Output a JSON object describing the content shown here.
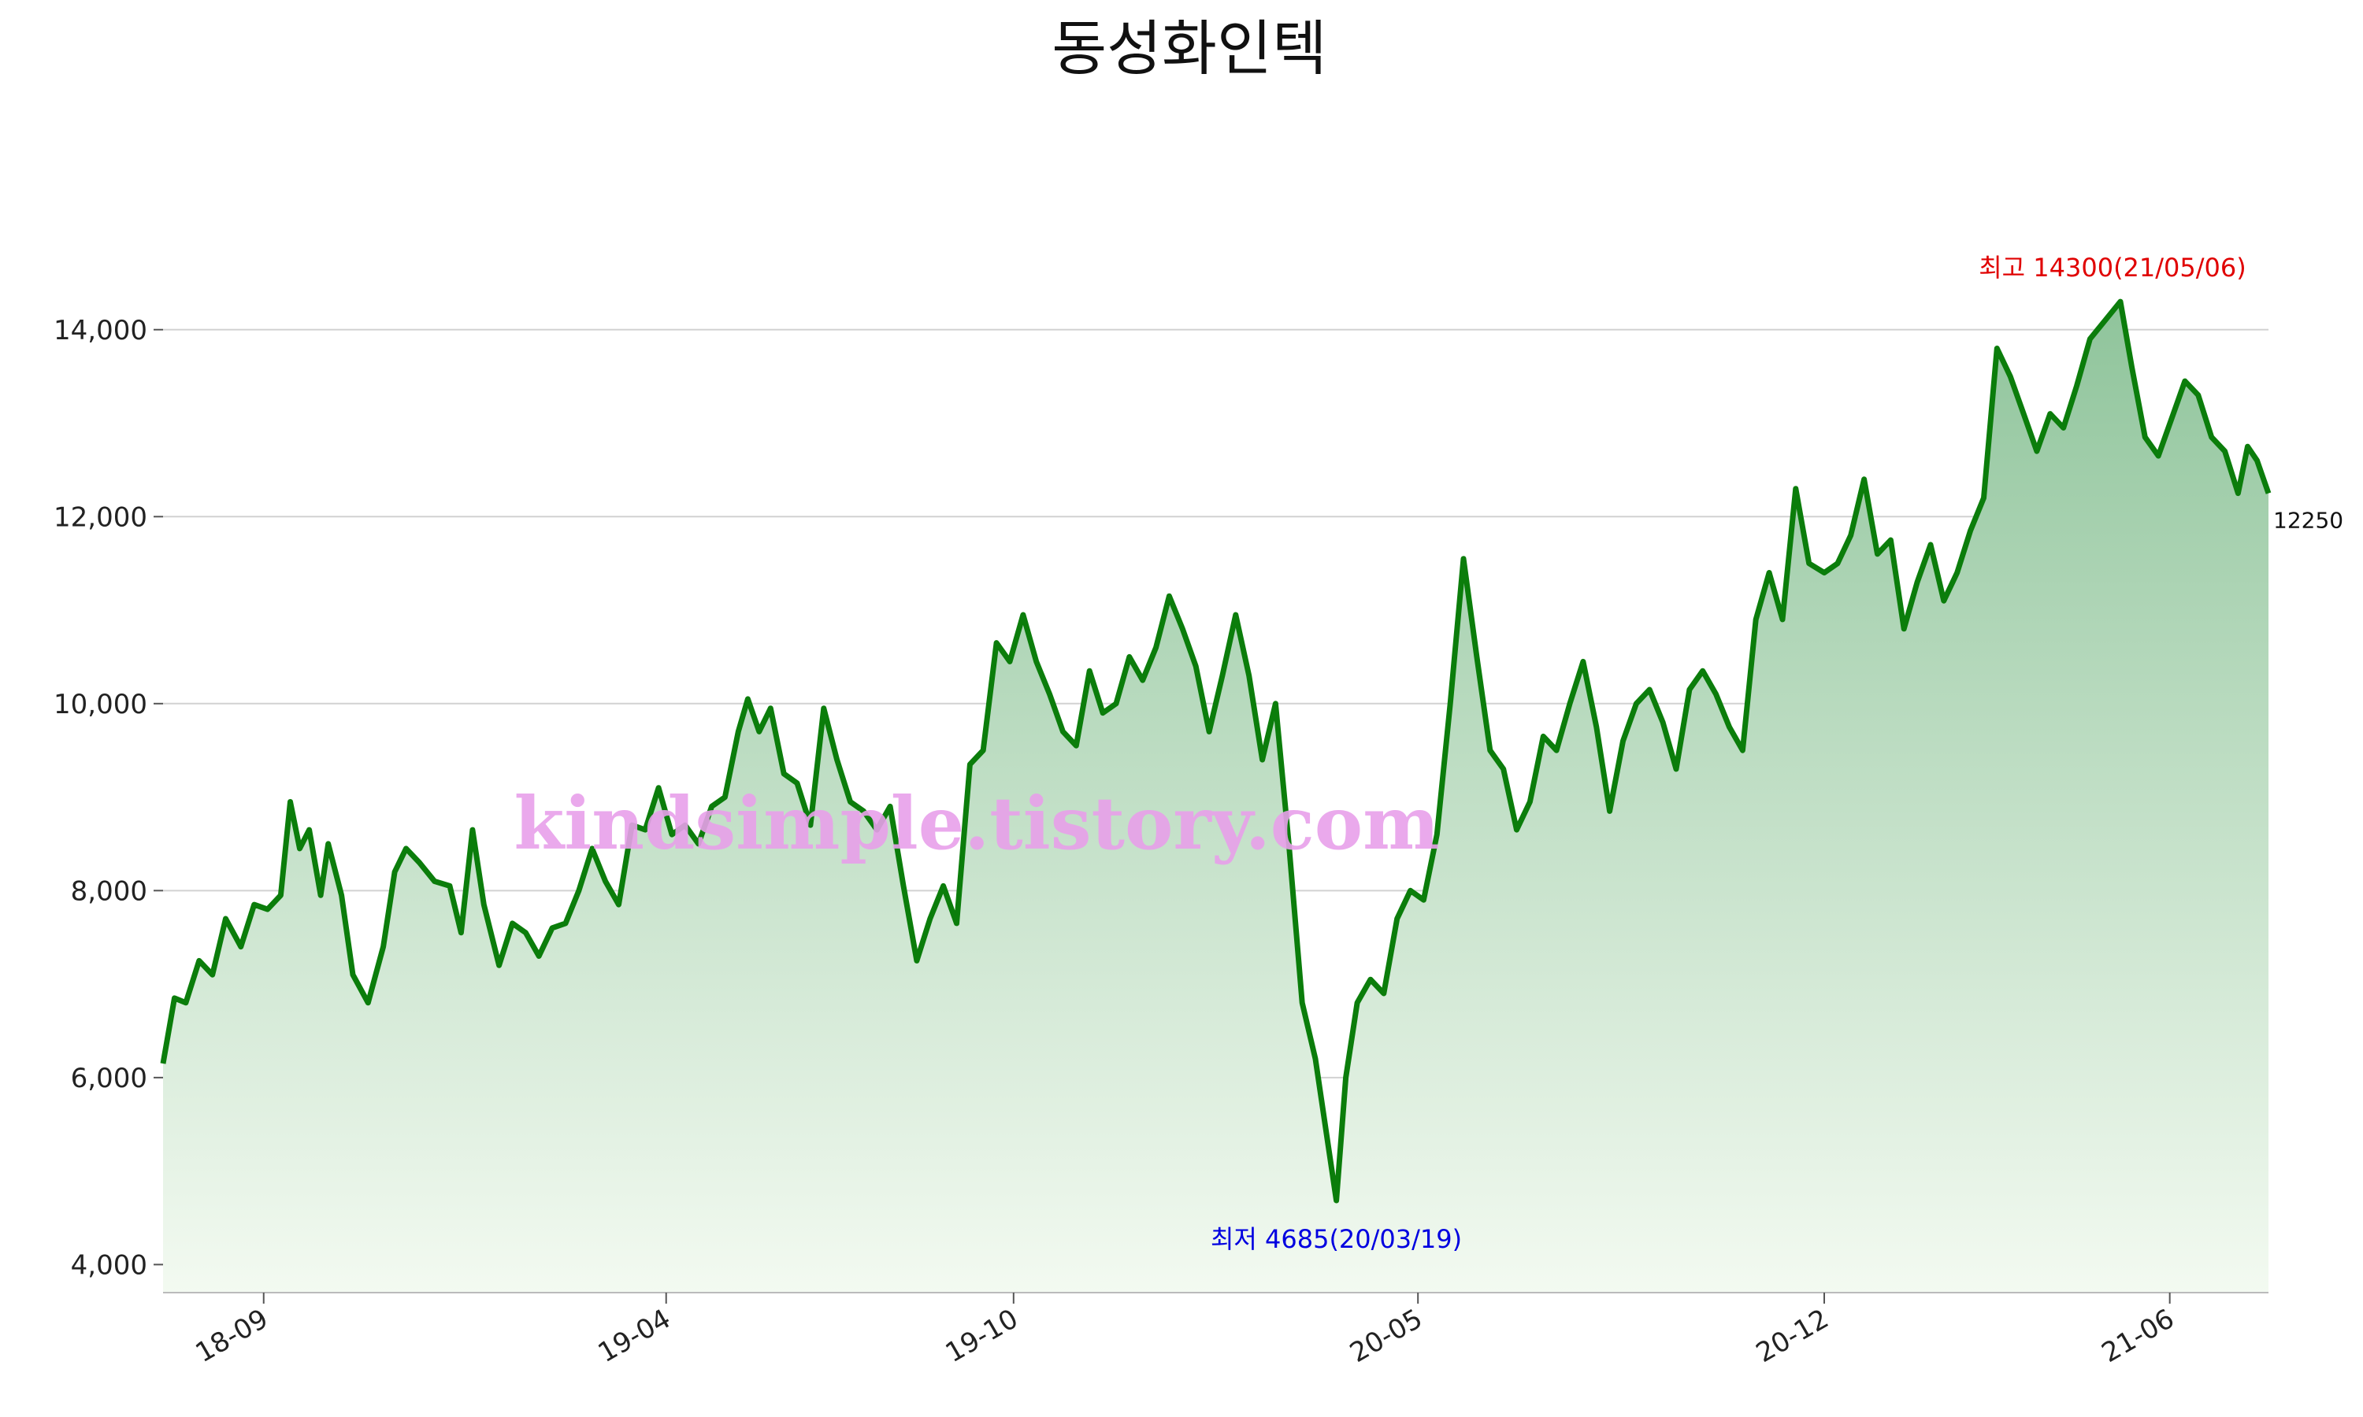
{
  "chart_data": {
    "type": "area",
    "title": "동성화인텍",
    "xlabel": "",
    "ylabel": "",
    "ylim": [
      3700,
      15000
    ],
    "yticks": [
      4000,
      6000,
      8000,
      10000,
      12000,
      14000
    ],
    "ytick_labels": [
      "4,000",
      "6,000",
      "8,000",
      "10,000",
      "12,000",
      "14,000"
    ],
    "xticks": [
      {
        "date": "2018-09-01",
        "label": "18-09"
      },
      {
        "date": "2019-04-01",
        "label": "19-04"
      },
      {
        "date": "2019-10-01",
        "label": "19-10"
      },
      {
        "date": "2020-05-01",
        "label": "20-05"
      },
      {
        "date": "2020-12-01",
        "label": "20-12"
      },
      {
        "date": "2021-06-01",
        "label": "21-06"
      }
    ],
    "x_range": [
      "2018-07-10",
      "2021-07-23"
    ],
    "grid": "horizontal",
    "colors": {
      "line": "#0b7d0b",
      "fill_top": "#8fc49b",
      "fill_bottom": "#f3faf1",
      "max": "#e00000",
      "min": "#0000e0",
      "watermark": "#e8a0ea"
    },
    "series": [
      {
        "points": [
          [
            "2018-07-10",
            6150
          ],
          [
            "2018-07-16",
            6850
          ],
          [
            "2018-07-22",
            6800
          ],
          [
            "2018-07-29",
            7250
          ],
          [
            "2018-08-05",
            7100
          ],
          [
            "2018-08-12",
            7700
          ],
          [
            "2018-08-20",
            7400
          ],
          [
            "2018-08-27",
            7850
          ],
          [
            "2018-09-03",
            7800
          ],
          [
            "2018-09-10",
            7950
          ],
          [
            "2018-09-15",
            8950
          ],
          [
            "2018-09-20",
            8450
          ],
          [
            "2018-09-25",
            8650
          ],
          [
            "2018-10-01",
            7950
          ],
          [
            "2018-10-05",
            8500
          ],
          [
            "2018-10-12",
            7950
          ],
          [
            "2018-10-18",
            7100
          ],
          [
            "2018-10-26",
            6800
          ],
          [
            "2018-11-03",
            7400
          ],
          [
            "2018-11-09",
            8200
          ],
          [
            "2018-11-15",
            8450
          ],
          [
            "2018-11-22",
            8300
          ],
          [
            "2018-11-30",
            8100
          ],
          [
            "2018-12-08",
            8050
          ],
          [
            "2018-12-14",
            7550
          ],
          [
            "2018-12-20",
            8650
          ],
          [
            "2018-12-26",
            7850
          ],
          [
            "2019-01-03",
            7200
          ],
          [
            "2019-01-10",
            7650
          ],
          [
            "2019-01-17",
            7550
          ],
          [
            "2019-01-24",
            7300
          ],
          [
            "2019-01-31",
            7600
          ],
          [
            "2019-02-07",
            7650
          ],
          [
            "2019-02-14",
            8000
          ],
          [
            "2019-02-21",
            8450
          ],
          [
            "2019-02-28",
            8100
          ],
          [
            "2019-03-07",
            7850
          ],
          [
            "2019-03-14",
            8700
          ],
          [
            "2019-03-21",
            8650
          ],
          [
            "2019-03-28",
            9100
          ],
          [
            "2019-04-04",
            8600
          ],
          [
            "2019-04-11",
            8700
          ],
          [
            "2019-04-18",
            8500
          ],
          [
            "2019-04-25",
            8900
          ],
          [
            "2019-05-02",
            9000
          ],
          [
            "2019-05-09",
            9700
          ],
          [
            "2019-05-14",
            10050
          ],
          [
            "2019-05-20",
            9700
          ],
          [
            "2019-05-26",
            9950
          ],
          [
            "2019-06-02",
            9250
          ],
          [
            "2019-06-09",
            9150
          ],
          [
            "2019-06-16",
            8700
          ],
          [
            "2019-06-23",
            9950
          ],
          [
            "2019-06-30",
            9400
          ],
          [
            "2019-07-07",
            8950
          ],
          [
            "2019-07-14",
            8850
          ],
          [
            "2019-07-21",
            8650
          ],
          [
            "2019-07-28",
            8900
          ],
          [
            "2019-08-04",
            8050
          ],
          [
            "2019-08-11",
            7250
          ],
          [
            "2019-08-18",
            7700
          ],
          [
            "2019-08-25",
            8050
          ],
          [
            "2019-09-01",
            7650
          ],
          [
            "2019-09-08",
            9350
          ],
          [
            "2019-09-15",
            9500
          ],
          [
            "2019-09-22",
            10650
          ],
          [
            "2019-09-29",
            10450
          ],
          [
            "2019-10-06",
            10950
          ],
          [
            "2019-10-13",
            10450
          ],
          [
            "2019-10-20",
            10100
          ],
          [
            "2019-10-27",
            9700
          ],
          [
            "2019-11-03",
            9550
          ],
          [
            "2019-11-10",
            10350
          ],
          [
            "2019-11-17",
            9900
          ],
          [
            "2019-11-24",
            10000
          ],
          [
            "2019-12-01",
            10500
          ],
          [
            "2019-12-08",
            10250
          ],
          [
            "2019-12-15",
            10600
          ],
          [
            "2019-12-22",
            11150
          ],
          [
            "2019-12-29",
            10800
          ],
          [
            "2020-01-05",
            10400
          ],
          [
            "2020-01-12",
            9700
          ],
          [
            "2020-01-19",
            10300
          ],
          [
            "2020-01-26",
            10950
          ],
          [
            "2020-02-02",
            10300
          ],
          [
            "2020-02-09",
            9400
          ],
          [
            "2020-02-16",
            10000
          ],
          [
            "2020-02-23",
            8500
          ],
          [
            "2020-03-01",
            6800
          ],
          [
            "2020-03-08",
            6200
          ],
          [
            "2020-03-19",
            4685
          ],
          [
            "2020-03-24",
            6000
          ],
          [
            "2020-03-30",
            6800
          ],
          [
            "2020-04-06",
            7050
          ],
          [
            "2020-04-13",
            6900
          ],
          [
            "2020-04-20",
            7700
          ],
          [
            "2020-04-27",
            8000
          ],
          [
            "2020-05-04",
            7900
          ],
          [
            "2020-05-11",
            8600
          ],
          [
            "2020-05-18",
            10000
          ],
          [
            "2020-05-25",
            11550
          ],
          [
            "2020-06-01",
            10500
          ],
          [
            "2020-06-08",
            9500
          ],
          [
            "2020-06-15",
            9300
          ],
          [
            "2020-06-22",
            8650
          ],
          [
            "2020-06-29",
            8950
          ],
          [
            "2020-07-06",
            9650
          ],
          [
            "2020-07-13",
            9500
          ],
          [
            "2020-07-20",
            10000
          ],
          [
            "2020-07-27",
            10450
          ],
          [
            "2020-08-03",
            9750
          ],
          [
            "2020-08-10",
            8850
          ],
          [
            "2020-08-17",
            9600
          ],
          [
            "2020-08-24",
            10000
          ],
          [
            "2020-08-31",
            10150
          ],
          [
            "2020-09-07",
            9800
          ],
          [
            "2020-09-14",
            9300
          ],
          [
            "2020-09-21",
            10150
          ],
          [
            "2020-09-28",
            10350
          ],
          [
            "2020-10-05",
            10100
          ],
          [
            "2020-10-12",
            9750
          ],
          [
            "2020-10-19",
            9500
          ],
          [
            "2020-10-26",
            10900
          ],
          [
            "2020-11-02",
            11400
          ],
          [
            "2020-11-09",
            10900
          ],
          [
            "2020-11-16",
            12300
          ],
          [
            "2020-11-23",
            11500
          ],
          [
            "2020-12-01",
            11400
          ],
          [
            "2020-12-08",
            11500
          ],
          [
            "2020-12-15",
            11800
          ],
          [
            "2020-12-22",
            12400
          ],
          [
            "2020-12-29",
            11600
          ],
          [
            "2021-01-05",
            11750
          ],
          [
            "2021-01-12",
            10800
          ],
          [
            "2021-01-19",
            11300
          ],
          [
            "2021-01-26",
            11700
          ],
          [
            "2021-02-02",
            11100
          ],
          [
            "2021-02-09",
            11400
          ],
          [
            "2021-02-16",
            11850
          ],
          [
            "2021-02-23",
            12200
          ],
          [
            "2021-03-02",
            13800
          ],
          [
            "2021-03-09",
            13500
          ],
          [
            "2021-03-16",
            13100
          ],
          [
            "2021-03-23",
            12700
          ],
          [
            "2021-03-30",
            13100
          ],
          [
            "2021-04-06",
            12950
          ],
          [
            "2021-04-13",
            13400
          ],
          [
            "2021-04-20",
            13900
          ],
          [
            "2021-05-06",
            14300
          ],
          [
            "2021-05-12",
            13600
          ],
          [
            "2021-05-19",
            12850
          ],
          [
            "2021-05-26",
            12650
          ],
          [
            "2021-06-02",
            13050
          ],
          [
            "2021-06-09",
            13450
          ],
          [
            "2021-06-16",
            13300
          ],
          [
            "2021-06-23",
            12850
          ],
          [
            "2021-06-30",
            12700
          ],
          [
            "2021-07-07",
            12250
          ],
          [
            "2021-07-12",
            12750
          ],
          [
            "2021-07-17",
            12600
          ],
          [
            "2021-07-23",
            12250
          ]
        ]
      }
    ],
    "annotations": {
      "max": {
        "label": "최고 14300(21/05/06)",
        "date": "2021-05-06",
        "value": 14300
      },
      "min": {
        "label": "최저 4685(20/03/19)",
        "date": "2020-03-19",
        "value": 4685
      },
      "last": {
        "label": "12250",
        "date": "2021-07-23",
        "value": 12250
      }
    },
    "watermark": "kindsimple.tistory.com"
  }
}
